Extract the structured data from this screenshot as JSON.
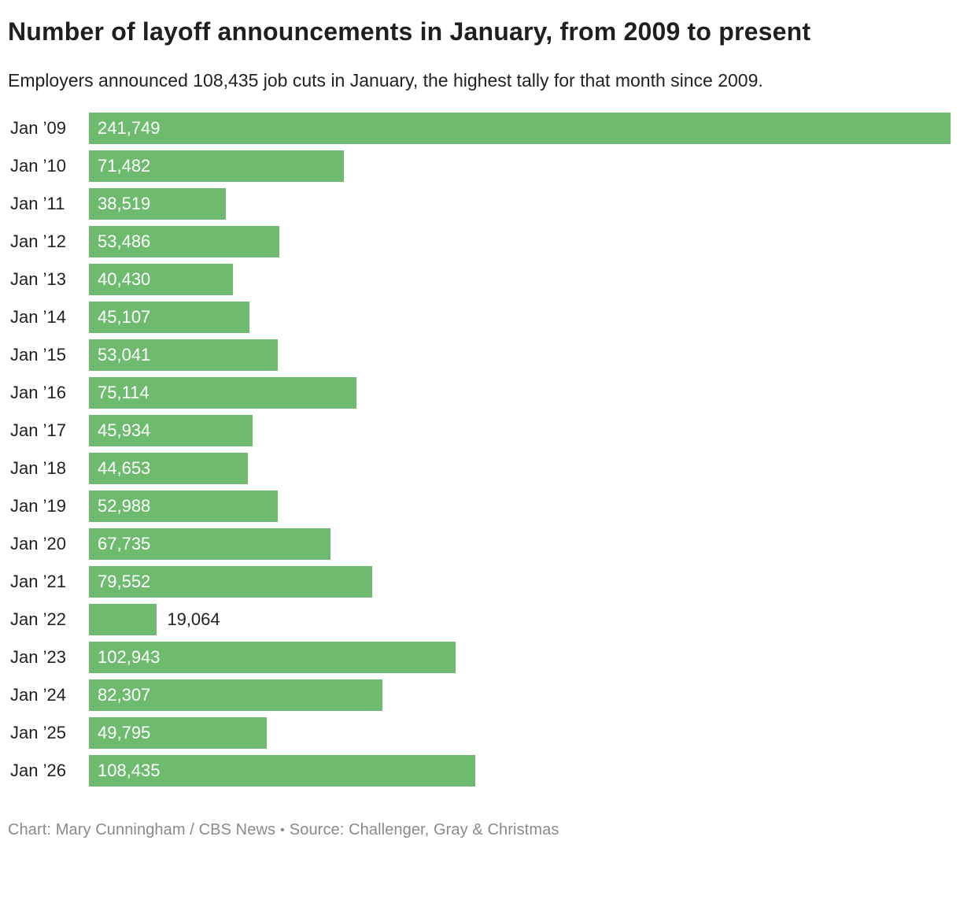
{
  "header": {
    "title": "Number of layoff announcements in January, from 2009 to present",
    "subtitle": "Employers announced 108,435 job cuts in January, the highest tally for that month since 2009."
  },
  "footer": {
    "credit": "Chart: Mary Cunningham / CBS News",
    "separator": "•",
    "source": "Source: Challenger, Gray & Christmas"
  },
  "colors": {
    "bar_fill": "#6ebb70",
    "value_label_inside": "#ffffff",
    "value_label_outside": "#222222",
    "title_text": "#1f1f1f",
    "footer_text": "#8a8a8a"
  },
  "chart_data": {
    "type": "bar",
    "orientation": "horizontal",
    "title": "Number of layoff announcements in January, from 2009 to present",
    "subtitle": "Employers announced 108,435 job cuts in January, the highest tally for that month since 2009.",
    "xlabel": "",
    "ylabel": "",
    "xlim": [
      0,
      241749
    ],
    "grid": false,
    "legend": false,
    "categories": [
      "Jan ’09",
      "Jan ’10",
      "Jan ’11",
      "Jan ’12",
      "Jan ’13",
      "Jan ’14",
      "Jan ’15",
      "Jan ’16",
      "Jan ’17",
      "Jan ’18",
      "Jan ’19",
      "Jan ’20",
      "Jan ’21",
      "Jan ’22",
      "Jan ’23",
      "Jan ’24",
      "Jan ’25",
      "Jan ’26"
    ],
    "values": [
      241749,
      71482,
      38519,
      53486,
      40430,
      45107,
      53041,
      75114,
      45934,
      44653,
      52988,
      67735,
      79552,
      19064,
      102943,
      82307,
      49795,
      108435
    ],
    "value_labels": [
      "241,749",
      "71,482",
      "38,519",
      "53,486",
      "40,430",
      "45,107",
      "53,041",
      "75,114",
      "45,934",
      "44,653",
      "52,988",
      "67,735",
      "79,552",
      "19,064",
      "102,943",
      "82,307",
      "49,795",
      "108,435"
    ]
  }
}
